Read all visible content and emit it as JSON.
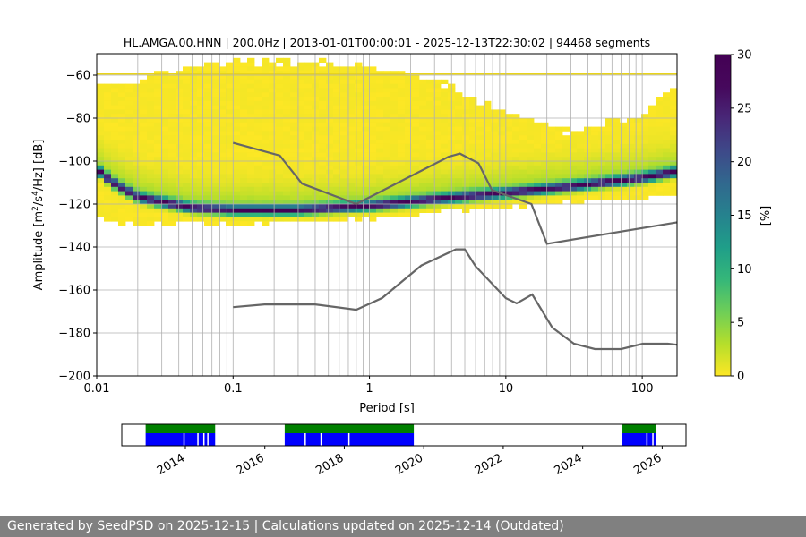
{
  "footer": {
    "text": "Generated by SeedPSD on 2025-12-15 | Calculations updated on 2025-12-14 (Outdated)",
    "background": "#808080"
  },
  "chart_data": [
    {
      "type": "heatmap",
      "title": "HL.AMGA.00.HNN | 200.0Hz | 2013-01-01T00:00:01 - 2025-12-13T22:30:02 | 94468 segments",
      "xlabel": "Period [s]",
      "ylabel_main": "Amplitude [m",
      "ylabel_sup1": "2",
      "ylabel_mid": "/s",
      "ylabel_sup2": "4",
      "ylabel_end": "/Hz] [dB]",
      "x_scale": "log",
      "xlim": [
        0.01,
        180
      ],
      "ylim": [
        -200,
        -50
      ],
      "x_ticks": [
        0.01,
        0.1,
        1,
        10,
        100
      ],
      "x_tick_labels": [
        "0.01",
        "0.1",
        "1",
        "10",
        "100"
      ],
      "y_ticks": [
        -60,
        -80,
        -100,
        -120,
        -140,
        -160,
        -180,
        -200
      ],
      "y_tick_labels": [
        "−60",
        "−80",
        "−100",
        "−120",
        "−140",
        "−160",
        "−180",
        "−200"
      ],
      "grid": true,
      "colormap": "viridis_r",
      "colorbar": {
        "label": "[%]",
        "range": [
          0,
          30
        ],
        "ticks": [
          0,
          5,
          10,
          15,
          20,
          25,
          30
        ],
        "tick_labels": [
          "0",
          "5",
          "10",
          "15",
          "20",
          "25",
          "30"
        ]
      },
      "reference_curves": [
        {
          "id": "nhnm",
          "color": "#666666",
          "x": [
            0.1,
            0.22,
            0.32,
            0.8,
            3.8,
            4.6,
            6.3,
            7.9,
            15.4,
            20,
            180
          ],
          "y": [
            -91.5,
            -97.4,
            -110.5,
            -120,
            -98,
            -96.5,
            -101,
            -113.5,
            -120,
            -138.5,
            -128.5
          ]
        },
        {
          "id": "nlnm",
          "color": "#666666",
          "x": [
            0.1,
            0.17,
            0.4,
            0.8,
            1.24,
            2.4,
            4.3,
            5,
            6,
            10,
            12,
            15.6,
            21.9,
            31.6,
            45,
            70,
            101,
            154,
            180
          ],
          "y": [
            -168,
            -166.7,
            -166.7,
            -169.2,
            -163.7,
            -148.6,
            -141.1,
            -141.1,
            -149,
            -163.8,
            -166.2,
            -162.1,
            -177.5,
            -185,
            -187.5,
            -187.5,
            -185,
            -185,
            -185.5
          ]
        }
      ],
      "density_band": {
        "x": [
          0.01,
          0.013,
          0.02,
          0.05,
          0.1,
          0.3,
          1,
          3,
          10,
          30,
          100,
          180
        ],
        "y_peak": [
          -104,
          -110,
          -117,
          -122,
          -123,
          -123,
          -121,
          -118,
          -115,
          -112,
          -108,
          -105
        ],
        "y_upper": [
          -62,
          -64,
          -62,
          -56,
          -54,
          -54,
          -55,
          -62,
          -78,
          -86,
          -79,
          -62
        ],
        "y_lower": [
          -126,
          -127,
          -129,
          -128,
          -128,
          -127,
          -126,
          -123,
          -120,
          -118,
          -116,
          -115
        ]
      }
    },
    {
      "type": "timeline",
      "x_tick_labels": [
        "2014",
        "2016",
        "2018",
        "2020",
        "2022",
        "2024",
        "2026"
      ],
      "x_ticks": [
        2014,
        2016,
        2018,
        2020,
        2022,
        2024,
        2026
      ],
      "xlim": [
        2012.4,
        2026.6
      ],
      "availability": [
        [
          2013.0,
          2014.75
        ],
        [
          2016.5,
          2019.75
        ],
        [
          2025.0,
          2025.85
        ]
      ],
      "gaps": [
        2013.95,
        2014.3,
        2014.45,
        2014.55,
        2017.0,
        2017.4,
        2018.1,
        2025.6,
        2025.75
      ],
      "colors": {
        "top": "#008000",
        "bottom": "#0000ff"
      }
    }
  ]
}
